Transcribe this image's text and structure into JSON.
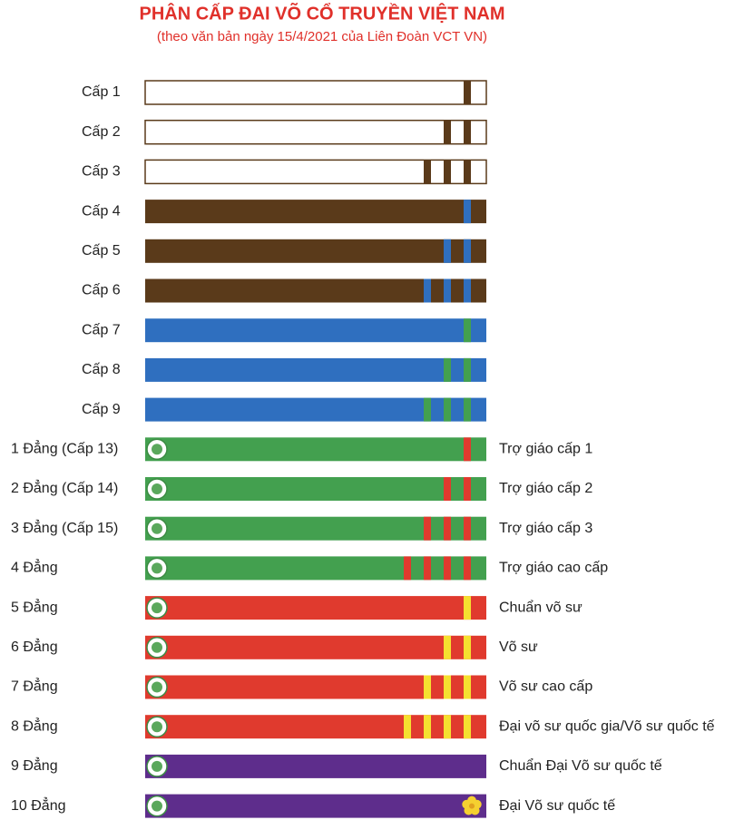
{
  "title": "PHÂN CẤP ĐAI VÕ CỔ TRUYỀN VIỆT NAM",
  "subtitle": "(theo văn bản ngày 15/4/2021 của Liên Đoàn VCT VN)",
  "rows": [
    {
      "label": "Cấp 1",
      "belt": {
        "base": "#ffffff",
        "border": "#5a3a1a",
        "stripe": "#5a3a1a",
        "stripes": 1
      }
    },
    {
      "label": "Cấp 2",
      "belt": {
        "base": "#ffffff",
        "border": "#5a3a1a",
        "stripe": "#5a3a1a",
        "stripes": 2
      }
    },
    {
      "label": "Cấp 3",
      "belt": {
        "base": "#ffffff",
        "border": "#5a3a1a",
        "stripe": "#5a3a1a",
        "stripes": 3
      }
    },
    {
      "label": "Cấp 4",
      "belt": {
        "base": "#5a3a1a",
        "stripe": "#2f6fbf",
        "stripes": 1
      }
    },
    {
      "label": "Cấp 5",
      "belt": {
        "base": "#5a3a1a",
        "stripe": "#2f6fbf",
        "stripes": 2
      }
    },
    {
      "label": "Cấp 6",
      "belt": {
        "base": "#5a3a1a",
        "stripe": "#2f6fbf",
        "stripes": 3
      }
    },
    {
      "label": "Cấp 7",
      "belt": {
        "base": "#2f6fbf",
        "stripe": "#43a04f",
        "stripes": 1
      }
    },
    {
      "label": "Cấp 8",
      "belt": {
        "base": "#2f6fbf",
        "stripe": "#43a04f",
        "stripes": 2
      }
    },
    {
      "label": "Cấp 9",
      "belt": {
        "base": "#2f6fbf",
        "stripe": "#43a04f",
        "stripes": 3
      }
    },
    {
      "label": "1 Đẳng (Cấp 13)",
      "belt": {
        "base": "#43a04f",
        "stripe": "#e03a2e",
        "stripes": 1,
        "logo": true
      },
      "desc": "Trợ giáo cấp 1"
    },
    {
      "label": "2 Đẳng (Cấp 14)",
      "belt": {
        "base": "#43a04f",
        "stripe": "#e03a2e",
        "stripes": 2,
        "logo": true
      },
      "desc": "Trợ giáo cấp 2"
    },
    {
      "label": "3 Đẳng (Cấp 15)",
      "belt": {
        "base": "#43a04f",
        "stripe": "#e03a2e",
        "stripes": 3,
        "logo": true
      },
      "desc": "Trợ giáo cấp 3"
    },
    {
      "label": "4 Đẳng",
      "belt": {
        "base": "#43a04f",
        "stripe": "#e03a2e",
        "stripes": 4,
        "logo": true
      },
      "desc": "Trợ giáo cao cấp"
    },
    {
      "label": "5 Đẳng",
      "belt": {
        "base": "#e03a2e",
        "stripe": "#f5e030",
        "stripes": 1,
        "logo": true
      },
      "desc": "Chuẩn võ sư"
    },
    {
      "label": "6 Đẳng",
      "belt": {
        "base": "#e03a2e",
        "stripe": "#f5e030",
        "stripes": 2,
        "logo": true
      },
      "desc": "Võ sư"
    },
    {
      "label": "7 Đẳng",
      "belt": {
        "base": "#e03a2e",
        "stripe": "#f5e030",
        "stripes": 3,
        "logo": true
      },
      "desc": "Võ sư cao cấp"
    },
    {
      "label": "8 Đẳng",
      "belt": {
        "base": "#e03a2e",
        "stripe": "#f5e030",
        "stripes": 4,
        "logo": true
      },
      "desc": "Đại võ sư quốc gia/Võ sư quốc tế"
    },
    {
      "label": "9 Đẳng",
      "belt": {
        "base": "#5e2d8c",
        "stripes": 0,
        "logo": true
      },
      "desc": "Chuẩn Đại Võ sư quốc tế"
    },
    {
      "label": "10 Đẳng",
      "belt": {
        "base": "#5e2d8c",
        "stripes": 0,
        "logo": true,
        "flower": "#f5d030"
      },
      "desc": "Đại Võ sư quốc tế"
    }
  ]
}
